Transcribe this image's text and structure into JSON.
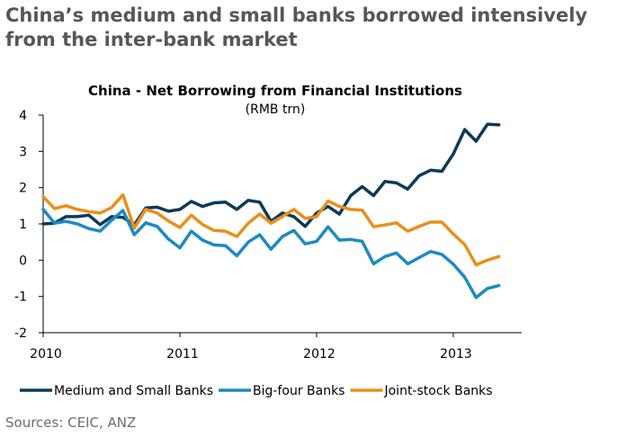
{
  "headline": "China’s medium and small banks borrowed intensively from the inter-bank market",
  "source": "Sources: CEIC, ANZ",
  "chart_data": {
    "type": "line",
    "title": "China - Net Borrowing from Financial Institutions",
    "subtitle": "(RMB trn)",
    "xlabel": "",
    "ylabel": "",
    "ylim": [
      -2,
      4
    ],
    "yticks": [
      -2,
      -1,
      0,
      1,
      2,
      3,
      4
    ],
    "xlim": [
      2010,
      2013.5
    ],
    "xticks": [
      2010,
      2011,
      2012,
      2013
    ],
    "grid": false,
    "legend_position": "bottom",
    "series": [
      {
        "name": "Medium and Small Banks",
        "color": "#0d3a57",
        "x": [
          2010.0,
          2010.0833,
          2010.1667,
          2010.25,
          2010.3333,
          2010.4167,
          2010.5,
          2010.5833,
          2010.6667,
          2010.75,
          2010.8333,
          2010.9167,
          2011.0,
          2011.0833,
          2011.1667,
          2011.25,
          2011.3333,
          2011.4167,
          2011.5,
          2011.5833,
          2011.6667,
          2011.75,
          2011.8333,
          2011.9167,
          2012.0,
          2012.0833,
          2012.1667,
          2012.25,
          2012.3333,
          2012.4167,
          2012.5,
          2012.5833,
          2012.6667,
          2012.75,
          2012.8333,
          2012.9167,
          2013.0,
          2013.0833,
          2013.1667,
          2013.25,
          2013.3333
        ],
        "values": [
          1.0,
          1.02,
          1.2,
          1.2,
          1.24,
          0.98,
          1.2,
          1.18,
          0.97,
          1.44,
          1.46,
          1.35,
          1.4,
          1.62,
          1.48,
          1.58,
          1.6,
          1.4,
          1.65,
          1.6,
          1.07,
          1.3,
          1.2,
          0.93,
          1.3,
          1.48,
          1.27,
          1.78,
          2.03,
          1.78,
          2.17,
          2.13,
          1.96,
          2.33,
          2.48,
          2.45,
          2.93,
          3.6,
          3.28,
          3.75,
          3.73
        ]
      },
      {
        "name": "Big-four Banks",
        "color": "#1d8ac3",
        "x": [
          2010.0,
          2010.0833,
          2010.1667,
          2010.25,
          2010.3333,
          2010.4167,
          2010.5,
          2010.5833,
          2010.6667,
          2010.75,
          2010.8333,
          2010.9167,
          2011.0,
          2011.0833,
          2011.1667,
          2011.25,
          2011.3333,
          2011.4167,
          2011.5,
          2011.5833,
          2011.6667,
          2011.75,
          2011.8333,
          2011.9167,
          2012.0,
          2012.0833,
          2012.1667,
          2012.25,
          2012.3333,
          2012.4167,
          2012.5,
          2012.5833,
          2012.6667,
          2012.75,
          2012.8333,
          2012.9167,
          2013.0,
          2013.0833,
          2013.1667,
          2013.25,
          2013.3333
        ],
        "values": [
          1.4,
          1.02,
          1.07,
          1.0,
          0.87,
          0.8,
          1.1,
          1.37,
          0.7,
          1.03,
          0.93,
          0.58,
          0.34,
          0.8,
          0.55,
          0.42,
          0.4,
          0.12,
          0.5,
          0.7,
          0.3,
          0.65,
          0.82,
          0.45,
          0.52,
          0.92,
          0.55,
          0.57,
          0.52,
          -0.1,
          0.1,
          0.2,
          -0.1,
          0.07,
          0.24,
          0.16,
          -0.11,
          -0.47,
          -1.03,
          -0.78,
          -0.7
        ]
      },
      {
        "name": "Joint-stock Banks",
        "color": "#e8901c",
        "x": [
          2010.0,
          2010.0833,
          2010.1667,
          2010.25,
          2010.3333,
          2010.4167,
          2010.5,
          2010.5833,
          2010.6667,
          2010.75,
          2010.8333,
          2010.9167,
          2011.0,
          2011.0833,
          2011.1667,
          2011.25,
          2011.3333,
          2011.4167,
          2011.5,
          2011.5833,
          2011.6667,
          2011.75,
          2011.8333,
          2011.9167,
          2012.0,
          2012.0833,
          2012.1667,
          2012.25,
          2012.3333,
          2012.4167,
          2012.5,
          2012.5833,
          2012.6667,
          2012.75,
          2012.8333,
          2012.9167,
          2013.0,
          2013.0833,
          2013.1667,
          2013.25,
          2013.3333
        ],
        "values": [
          1.75,
          1.42,
          1.5,
          1.4,
          1.34,
          1.3,
          1.45,
          1.8,
          0.88,
          1.4,
          1.3,
          1.08,
          0.9,
          1.24,
          0.98,
          0.82,
          0.8,
          0.65,
          1.02,
          1.27,
          1.02,
          1.2,
          1.4,
          1.15,
          1.2,
          1.63,
          1.48,
          1.4,
          1.38,
          0.92,
          0.97,
          1.03,
          0.8,
          0.93,
          1.05,
          1.05,
          0.72,
          0.43,
          -0.13,
          0.0,
          0.1
        ]
      }
    ]
  }
}
